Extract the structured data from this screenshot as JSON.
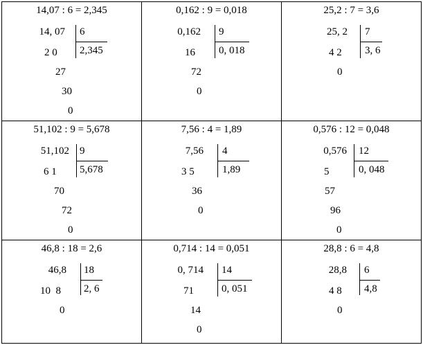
{
  "cells": [
    {
      "equation": "14,07 : 6 = 2,345",
      "dividend": "14, 07",
      "divisor": "6",
      "quotient": "2,345",
      "steps": [
        "2 0",
        "27",
        "30",
        "0"
      ]
    },
    {
      "equation": "0,162 : 9 = 0,018",
      "dividend": "0,162",
      "divisor": "9",
      "quotient": "0, 018",
      "steps": [
        "16",
        "72",
        "0"
      ]
    },
    {
      "equation": "25,2 : 7 = 3,6",
      "dividend": "25, 2",
      "divisor": "7",
      "quotient": "3, 6",
      "steps": [
        "4 2",
        "0"
      ]
    },
    {
      "equation": "51,102 : 9 = 5,678",
      "dividend": "51,102",
      "divisor": "9",
      "quotient": "5,678",
      "steps": [
        "6 1",
        "70",
        "72",
        "0"
      ]
    },
    {
      "equation": "7,56 : 4 = 1,89",
      "dividend": "7,56",
      "divisor": "4",
      "quotient": "1,89",
      "steps": [
        "3 5",
        "36",
        "0"
      ]
    },
    {
      "equation": "0,576 : 12 = 0,048",
      "dividend": "0,576",
      "divisor": "12",
      "quotient": "0, 048",
      "steps": [
        "5",
        "57",
        "96",
        "0"
      ]
    },
    {
      "equation": "46,8 : 18 = 2,6",
      "dividend": "46,8",
      "divisor": "18",
      "quotient": "2, 6",
      "steps": [
        "10  8",
        "0"
      ]
    },
    {
      "equation": "0,714 : 14 = 0,051",
      "dividend": "0, 714",
      "divisor": "14",
      "quotient": "0, 051",
      "steps": [
        "71",
        "14",
        "0"
      ]
    },
    {
      "equation": "28,8 : 6 = 4,8",
      "dividend": "28,8",
      "divisor": "6",
      "quotient": "4,8",
      "steps": [
        "4 8",
        "0"
      ]
    }
  ]
}
